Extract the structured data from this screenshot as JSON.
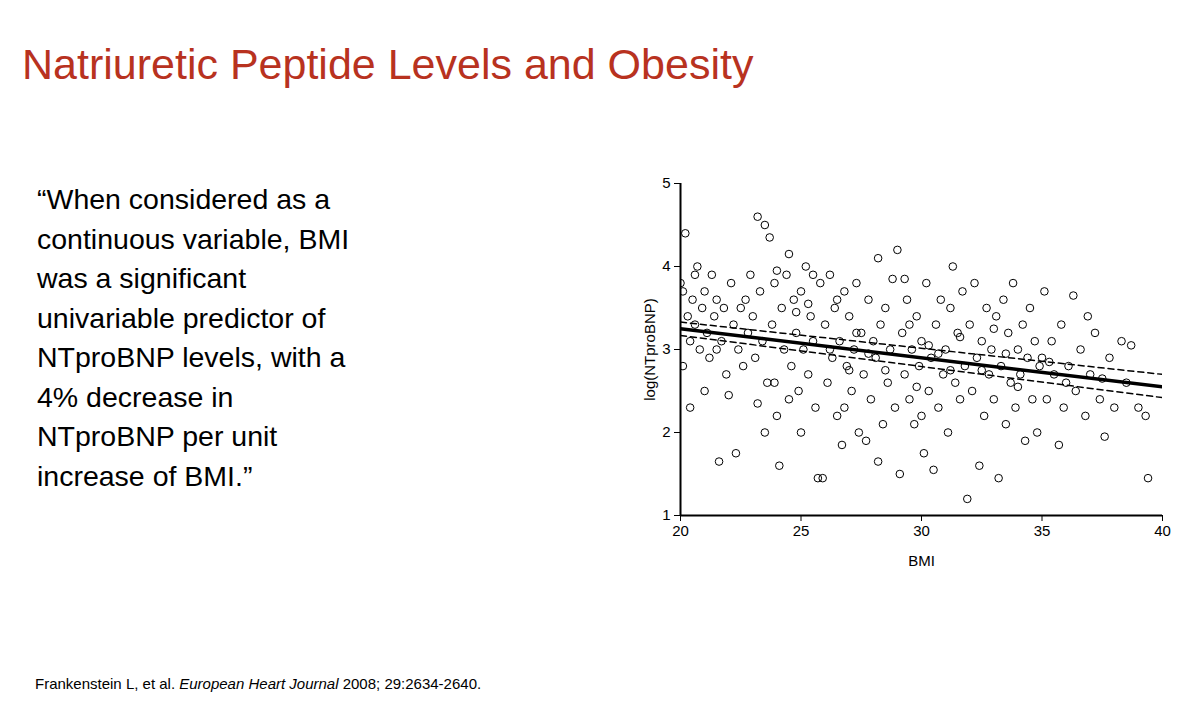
{
  "slide": {
    "title": "Natriuretic Peptide Levels and Obesity",
    "quote_lines": [
      "“When considered as a",
      "continuous variable, BMI",
      "was a significant",
      "univariable predictor of",
      "NTproBNP levels, with a",
      "4% decrease in",
      "NTproBNP per unit",
      "increase of BMI.”"
    ],
    "citation": {
      "authors": "Frankenstein L, et al.",
      "journal": "European Heart Journal",
      "details": "2008; 29:2634-2640."
    }
  },
  "chart_data": {
    "type": "scatter",
    "x_label": "BMI",
    "y_label": "log(NTproBNP)",
    "xlim": [
      20,
      40
    ],
    "xticks": [
      20,
      25,
      30,
      35,
      40
    ],
    "ylim": [
      1,
      5
    ],
    "yticks": [
      1,
      2,
      3,
      4,
      5
    ],
    "grid": false,
    "series": [
      {
        "type": "scatter",
        "marker": "circle",
        "color": "#000000",
        "x": [
          20.0,
          20.1,
          20.2,
          20.3,
          20.4,
          20.5,
          20.6,
          20.7,
          20.8,
          20.9,
          21.0,
          21.1,
          21.2,
          21.3,
          21.4,
          21.5,
          21.6,
          21.7,
          21.8,
          21.9,
          22.0,
          22.1,
          22.2,
          22.3,
          22.4,
          22.5,
          22.6,
          22.7,
          22.8,
          22.9,
          20.4,
          20.1,
          21.0,
          21.5,
          20.6,
          23.0,
          23.1,
          23.2,
          23.2,
          23.3,
          23.4,
          23.5,
          23.6,
          23.7,
          23.8,
          23.9,
          24.0,
          24.1,
          24.2,
          24.3,
          24.4,
          24.5,
          24.6,
          24.7,
          24.8,
          24.9,
          25.0,
          25.1,
          25.2,
          25.3,
          25.4,
          25.5,
          25.6,
          25.7,
          25.8,
          25.9,
          23.5,
          24.0,
          24.5,
          25.0,
          25.5,
          23.9,
          24.8,
          25.3,
          26.0,
          26.1,
          26.2,
          26.3,
          26.4,
          26.5,
          26.6,
          26.7,
          26.8,
          26.9,
          27.0,
          27.1,
          27.2,
          27.3,
          27.4,
          27.5,
          27.6,
          27.7,
          27.8,
          27.9,
          28.0,
          28.1,
          28.2,
          28.2,
          28.3,
          28.4,
          28.5,
          28.6,
          28.7,
          28.8,
          28.9,
          26.2,
          26.8,
          27.3,
          27.8,
          28.5,
          26.5,
          27.0,
          29.0,
          29.1,
          29.2,
          29.3,
          29.4,
          29.5,
          29.6,
          29.7,
          29.8,
          29.9,
          30.0,
          30.1,
          30.2,
          30.3,
          30.4,
          30.5,
          30.6,
          30.7,
          30.8,
          30.9,
          31.0,
          31.1,
          31.2,
          31.3,
          31.4,
          31.5,
          31.6,
          31.7,
          31.8,
          31.9,
          29.3,
          29.8,
          30.3,
          30.7,
          31.2,
          31.6,
          29.5,
          30.0,
          32.0,
          32.1,
          32.2,
          32.3,
          32.4,
          32.5,
          32.6,
          32.7,
          32.8,
          32.9,
          33.0,
          33.1,
          33.2,
          33.3,
          33.4,
          33.5,
          33.6,
          33.7,
          33.8,
          33.9,
          34.0,
          34.1,
          34.2,
          34.3,
          34.4,
          34.5,
          34.6,
          34.7,
          34.8,
          34.9,
          32.5,
          33.0,
          33.5,
          34.0,
          35.0,
          35.1,
          35.2,
          35.4,
          35.5,
          35.7,
          35.8,
          35.9,
          36.1,
          36.3,
          36.4,
          36.6,
          36.8,
          37.0,
          37.2,
          37.4,
          37.6,
          37.8,
          38.0,
          38.3,
          38.5,
          38.7,
          39.0,
          39.3,
          39.4,
          36.0,
          37.5,
          35.3,
          36.9
        ],
        "values": [
          3.8,
          3.7,
          4.4,
          3.4,
          3.1,
          3.6,
          3.3,
          4.0,
          3.0,
          3.5,
          3.7,
          3.2,
          2.9,
          3.9,
          3.4,
          3.6,
          1.65,
          3.1,
          3.5,
          2.7,
          2.45,
          3.8,
          3.3,
          1.75,
          3.0,
          3.5,
          2.8,
          3.6,
          3.2,
          3.9,
          2.3,
          2.8,
          2.5,
          3.0,
          3.9,
          3.4,
          2.9,
          4.6,
          2.35,
          3.7,
          3.1,
          4.5,
          2.6,
          4.35,
          3.3,
          3.8,
          2.2,
          1.6,
          3.5,
          3.0,
          3.9,
          4.15,
          2.8,
          3.6,
          3.2,
          2.5,
          3.7,
          3.0,
          4.0,
          2.7,
          3.4,
          3.1,
          2.3,
          1.45,
          3.8,
          1.45,
          2.0,
          3.95,
          2.4,
          2.0,
          3.9,
          2.6,
          3.45,
          3.55,
          3.3,
          2.6,
          3.9,
          2.9,
          3.5,
          2.2,
          3.1,
          1.85,
          3.7,
          2.8,
          3.4,
          2.5,
          3.0,
          3.8,
          2.0,
          3.2,
          2.7,
          1.9,
          3.6,
          2.4,
          3.1,
          2.9,
          4.1,
          1.65,
          3.3,
          2.1,
          3.5,
          2.6,
          3.0,
          3.85,
          2.3,
          3.0,
          2.3,
          3.2,
          2.95,
          2.75,
          3.6,
          2.75,
          4.2,
          1.5,
          3.2,
          2.7,
          3.6,
          2.4,
          3.0,
          2.1,
          3.4,
          2.8,
          3.1,
          1.75,
          3.8,
          2.5,
          2.9,
          1.55,
          3.3,
          2.3,
          3.6,
          2.7,
          3.0,
          2.0,
          3.5,
          4.0,
          2.6,
          3.2,
          2.4,
          3.7,
          2.8,
          1.2,
          3.85,
          2.55,
          3.05,
          2.95,
          2.75,
          3.15,
          3.3,
          2.2,
          3.3,
          2.5,
          3.8,
          2.9,
          1.6,
          3.1,
          2.2,
          3.5,
          2.7,
          3.0,
          2.4,
          3.4,
          1.45,
          2.8,
          3.6,
          2.1,
          3.2,
          2.6,
          3.8,
          2.3,
          3.0,
          2.7,
          3.3,
          1.9,
          2.9,
          3.5,
          2.4,
          3.1,
          2.0,
          2.8,
          2.75,
          3.25,
          2.95,
          2.55,
          2.9,
          3.7,
          2.4,
          3.1,
          2.7,
          1.85,
          3.3,
          2.3,
          2.8,
          3.65,
          2.5,
          3.0,
          2.2,
          2.7,
          3.2,
          2.4,
          1.95,
          2.9,
          2.3,
          3.1,
          2.6,
          3.05,
          2.3,
          2.2,
          1.45,
          2.6,
          2.65,
          2.85,
          3.4
        ]
      },
      {
        "type": "line",
        "line_style": "solid",
        "color": "#000000",
        "x": [
          20,
          40
        ],
        "values": [
          3.25,
          2.55
        ]
      },
      {
        "type": "line",
        "line_style": "dashed",
        "color": "#000000",
        "x": [
          20,
          40
        ],
        "values": [
          3.33,
          2.7
        ]
      },
      {
        "type": "line",
        "line_style": "dashed",
        "color": "#000000",
        "x": [
          20,
          40
        ],
        "values": [
          3.17,
          2.42
        ]
      }
    ]
  }
}
